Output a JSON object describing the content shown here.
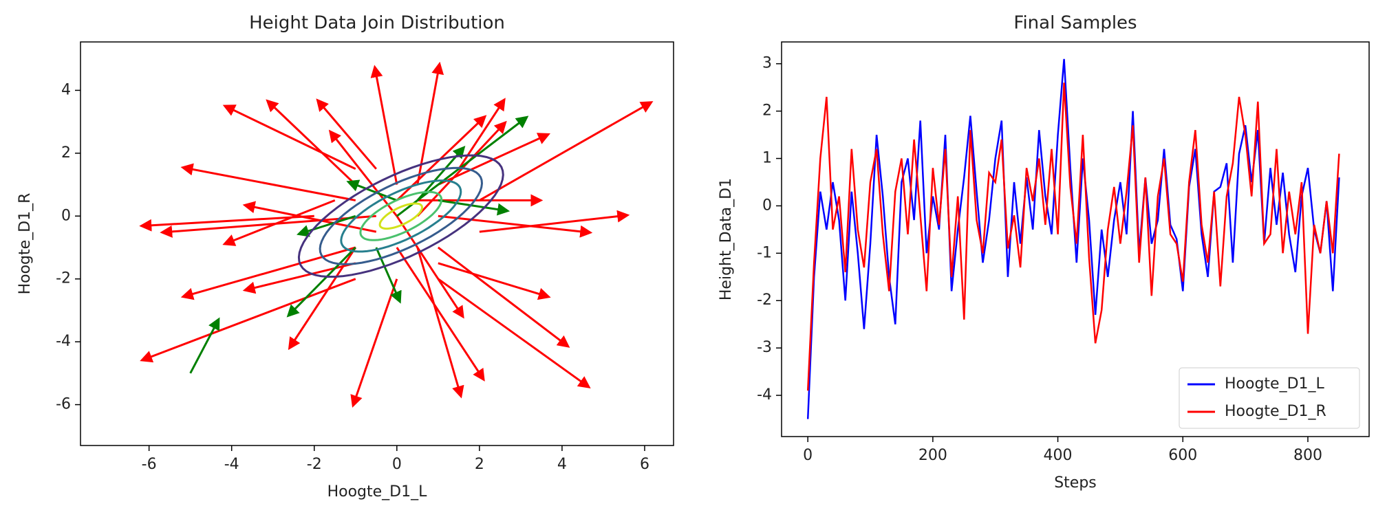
{
  "chart_data": [
    {
      "type": "quiver",
      "title": "Height Data Join Distribution",
      "xlabel": "Hoogte_D1_L",
      "ylabel": "Hoogte_D1_R",
      "xlim": [
        -7.66,
        6.7
      ],
      "ylim": [
        -7.3,
        5.54
      ],
      "xticks": [
        -6,
        -4,
        -2,
        0,
        2,
        4,
        6
      ],
      "yticks": [
        -6,
        -4,
        -2,
        0,
        2,
        4
      ],
      "contour_center": [
        0.1,
        0
      ],
      "contour_angle": 35,
      "contours": [
        {
          "rx": 2.9,
          "ry": 1.2,
          "color": "#46327e"
        },
        {
          "rx": 2.3,
          "ry": 0.95,
          "color": "#365c8d"
        },
        {
          "rx": 1.7,
          "ry": 0.7,
          "color": "#277f8e"
        },
        {
          "rx": 1.15,
          "ry": 0.48,
          "color": "#4ac16d"
        },
        {
          "rx": 0.6,
          "ry": 0.25,
          "color": "#d2e21b"
        }
      ],
      "arrows": [
        {
          "color": "#ff0000",
          "x": [
            -1,
            2,
            -1,
            1,
            0,
            0,
            0.5,
            -2,
            2,
            1,
            -1,
            -1,
            1,
            0,
            -1,
            1,
            -1,
            0,
            -0.5,
            0.5,
            -1.5,
            1.5,
            -0.5,
            1,
            -1,
            0.5,
            -0.5,
            0,
            0,
            0.5
          ],
          "y": [
            1.5,
            0.5,
            -2,
            -2,
            -2,
            1,
            1,
            0,
            -0.5,
            -1,
            0.5,
            -1,
            1,
            0.5,
            1,
            0,
            -1,
            -1,
            0,
            -1,
            0.5,
            1.5,
            1.5,
            -1.5,
            -1.5,
            0.5,
            -0.5,
            0,
            0,
            0
          ],
          "u": [
            -3,
            4,
            -5,
            3.5,
            -1,
            -0.5,
            0.5,
            -4,
            3.4,
            3,
            -4,
            -4,
            2.5,
            2,
            -2,
            3.5,
            -1.5,
            2,
            -5,
            1,
            -2.5,
            1,
            -1.3,
            2.5,
            -2.5,
            2.8,
            -3,
            1.5,
            -1.5,
            2
          ],
          "v": [
            1.9,
            3,
            -2.5,
            -3.3,
            -3.8,
            3.5,
            3.6,
            -0.3,
            0.5,
            -3,
            1,
            -1.5,
            1.5,
            2.5,
            2.5,
            -0.5,
            -3,
            -4,
            -0.5,
            -4.5,
            -1.3,
            2,
            2,
            -1,
            -0.8,
            0,
            0.8,
            -3,
            2.5,
            2.8
          ]
        },
        {
          "color": "#008000",
          "x": [
            -5,
            0,
            -1,
            0.5,
            -1,
            1,
            -0.5,
            0
          ],
          "y": [
            -5,
            0,
            -1,
            0.5,
            0,
            0.5,
            -1,
            0.5
          ],
          "u": [
            0.6,
            3,
            -1.5,
            1,
            -1.2,
            1.5,
            0.5,
            -1
          ],
          "v": [
            1.5,
            3,
            -2,
            1.5,
            -0.5,
            -0.3,
            -1.5,
            0.5
          ]
        }
      ]
    },
    {
      "type": "line",
      "title": "Final Samples",
      "xlabel": "Steps",
      "ylabel": "Height_Data_D1",
      "xlim": [
        -42,
        898
      ],
      "ylim": [
        -4.87,
        3.46
      ],
      "xticks": [
        0,
        200,
        400,
        600,
        800
      ],
      "yticks": [
        -4,
        -3,
        -2,
        -1,
        0,
        1,
        2,
        3
      ],
      "legend": "lower right",
      "x": [
        0,
        10,
        20,
        30,
        40,
        50,
        60,
        70,
        80,
        90,
        100,
        110,
        120,
        130,
        140,
        150,
        160,
        170,
        180,
        190,
        200,
        210,
        220,
        230,
        240,
        250,
        260,
        270,
        280,
        290,
        300,
        310,
        320,
        330,
        340,
        350,
        360,
        370,
        380,
        390,
        400,
        410,
        420,
        430,
        440,
        450,
        460,
        470,
        480,
        490,
        500,
        510,
        520,
        530,
        540,
        550,
        560,
        570,
        580,
        590,
        600,
        610,
        620,
        630,
        640,
        650,
        660,
        670,
        680,
        690,
        700,
        710,
        720,
        730,
        740,
        750,
        760,
        770,
        780,
        790,
        800,
        810,
        820,
        830,
        840,
        850
      ],
      "series": [
        {
          "name": "Hoogte_D1_L",
          "color": "#0000ff",
          "values": [
            -4.5,
            -1.5,
            0.3,
            -0.5,
            0.5,
            -0.3,
            -2,
            0.3,
            -1,
            -2.6,
            -0.8,
            1.5,
            0.2,
            -1.5,
            -2.5,
            0.5,
            1,
            -0.3,
            1.8,
            -1,
            0.2,
            -0.5,
            1.5,
            -1.8,
            -0.5,
            0.6,
            1.9,
            0.3,
            -1.2,
            -0.3,
            1,
            1.8,
            -1.5,
            0.5,
            -0.8,
            0.6,
            -0.5,
            1.6,
            0.2,
            -0.6,
            1.5,
            3.1,
            0.8,
            -1.2,
            1,
            -0.3,
            -2.3,
            -0.5,
            -1.5,
            -0.3,
            0.5,
            -0.6,
            2,
            -1,
            0.6,
            -0.8,
            -0.3,
            1.2,
            -0.4,
            -0.7,
            -1.8,
            0.4,
            1.2,
            -0.6,
            -1.5,
            0.3,
            0.4,
            0.9,
            -1.2,
            1.1,
            1.7,
            0.5,
            1.6,
            -0.8,
            0.8,
            -0.4,
            0.7,
            -0.6,
            -1.4,
            0.2,
            0.8,
            -0.5,
            -1,
            0.1,
            -1.8,
            0.6
          ]
        },
        {
          "name": "Hoogte_D1_R",
          "color": "#ff0000",
          "values": [
            -3.9,
            -1.2,
            1,
            2.3,
            -0.5,
            0.2,
            -1.4,
            1.2,
            -0.5,
            -1.3,
            0.5,
            1.2,
            -0.6,
            -1.8,
            0.3,
            1,
            -0.6,
            1.4,
            -0.2,
            -1.8,
            0.8,
            -0.4,
            1.2,
            -1.5,
            0.2,
            -2.4,
            1.6,
            -0.3,
            -1,
            0.7,
            0.5,
            1.4,
            -0.9,
            -0.2,
            -1.3,
            0.8,
            0.1,
            1,
            -0.4,
            1.2,
            -0.6,
            2.6,
            0.4,
            -0.8,
            1.5,
            -1.1,
            -2.9,
            -2.2,
            -0.5,
            0.4,
            -0.8,
            0.3,
            1.7,
            -1.2,
            0.6,
            -1.9,
            0.2,
            1,
            -0.6,
            -0.8,
            -1.6,
            0.5,
            1.6,
            -0.4,
            -1.2,
            0.3,
            -1.7,
            0.2,
            0.9,
            2.3,
            1.5,
            0.2,
            2.2,
            -0.8,
            -0.6,
            1.2,
            -1,
            0.3,
            -0.6,
            0.5,
            -2.7,
            -0.4,
            -1,
            0.1,
            -1,
            1.1
          ]
        }
      ]
    }
  ]
}
